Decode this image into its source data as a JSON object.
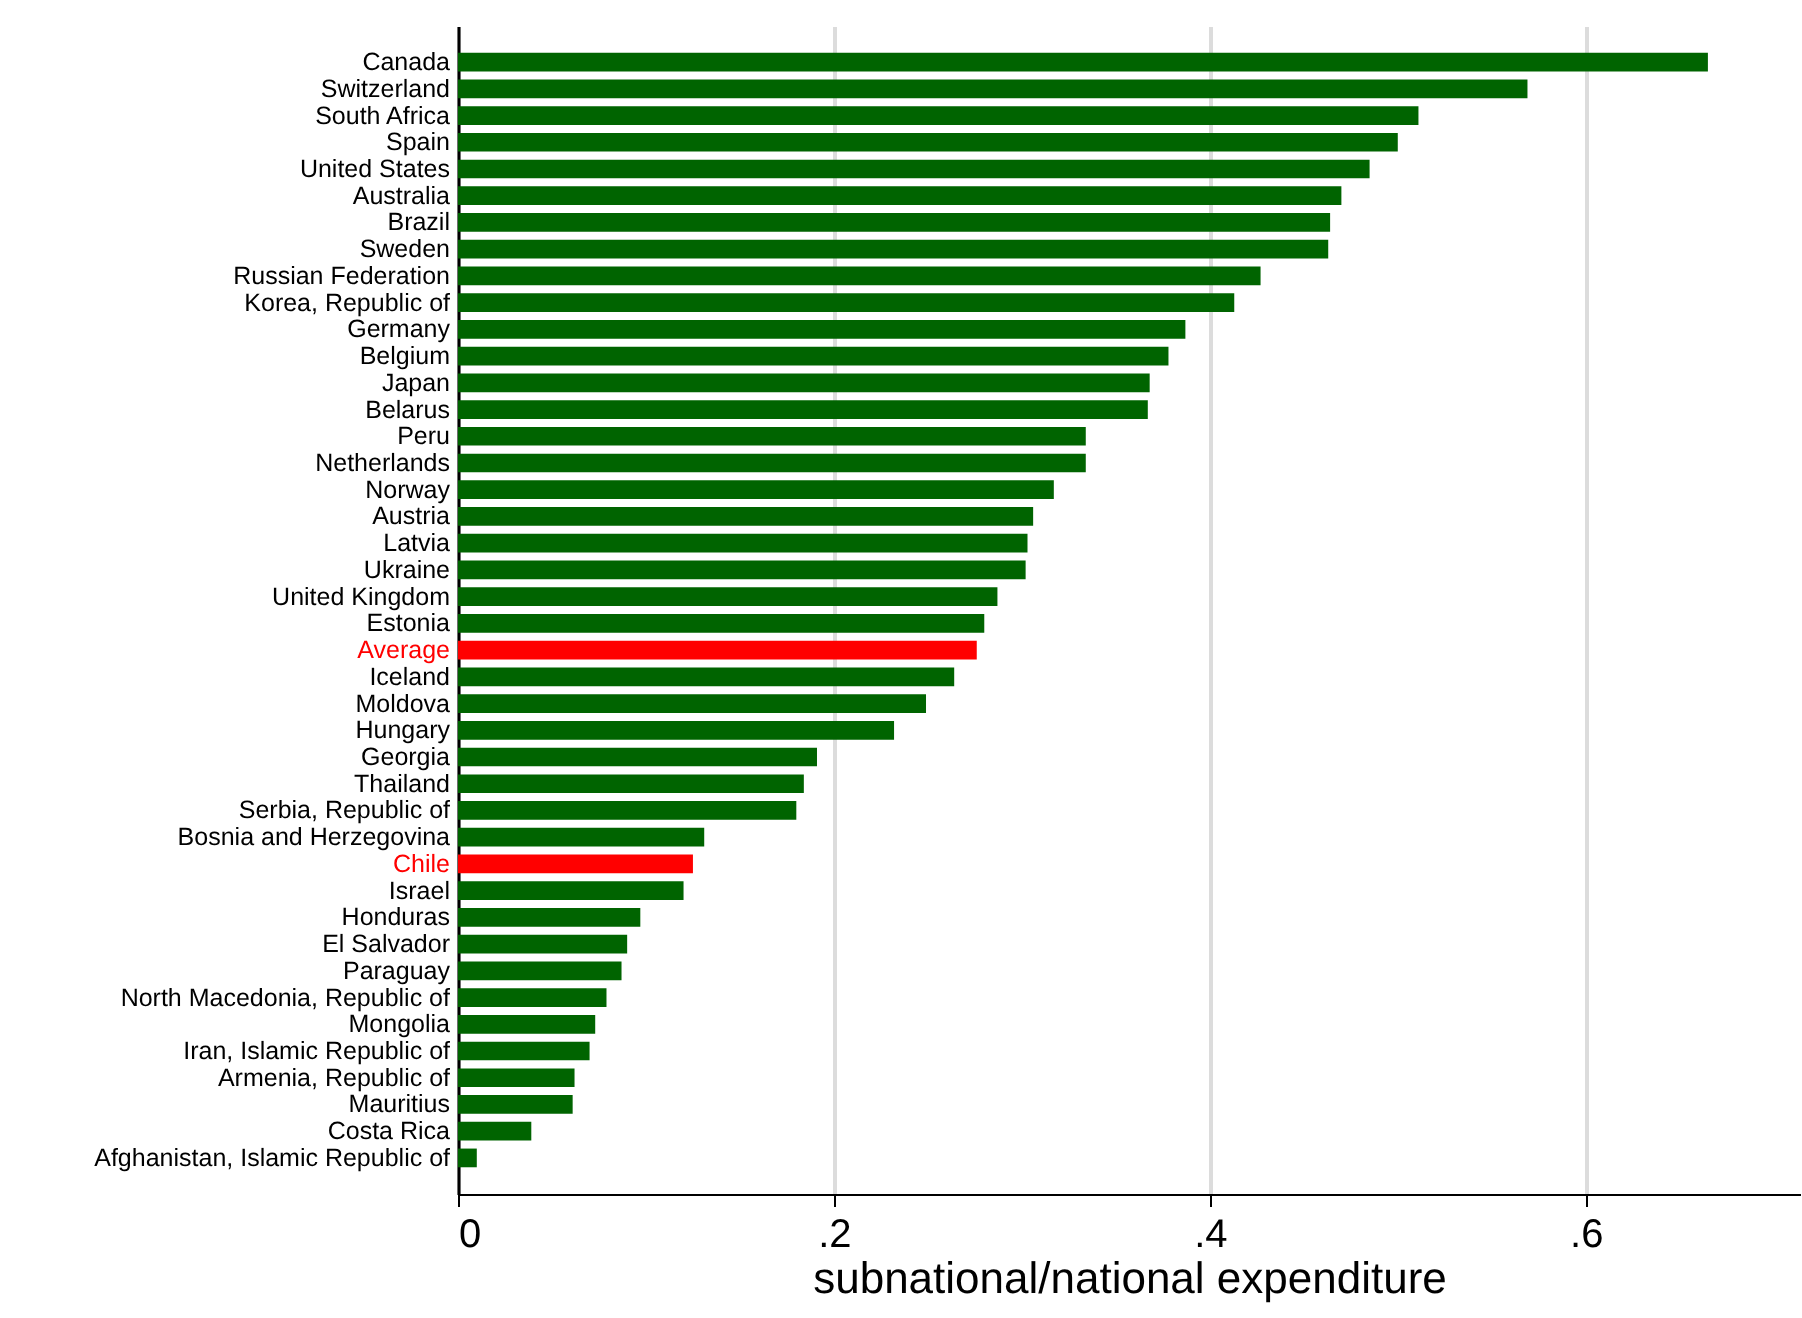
{
  "chart_data": {
    "type": "bar",
    "orientation": "horizontal",
    "xlabel": "subnational/national expenditure",
    "categories": [
      "Canada",
      "Switzerland",
      "South Africa",
      "Spain",
      "United States",
      "Australia",
      "Brazil",
      "Sweden",
      "Russian Federation",
      "Korea, Republic of",
      "Germany",
      "Belgium",
      "Japan",
      "Belarus",
      "Peru",
      "Netherlands",
      "Norway",
      "Austria",
      "Latvia",
      "Ukraine",
      "United Kingdom",
      "Estonia",
      "Average",
      "Iceland",
      "Moldova",
      "Hungary",
      "Georgia",
      "Thailand",
      "Serbia, Republic of",
      "Bosnia and Herzegovina",
      "Chile",
      "Israel",
      "Honduras",
      "El Salvador",
      "Paraguay",
      "North Macedonia, Republic of",
      "Mongolia",
      "Iran, Islamic Republic of",
      "Armenia, Republic of",
      "Mauritius",
      "Costa Rica",
      "Afghanistan, Islamic Republic of"
    ],
    "values": [
      0.665,
      0.569,
      0.511,
      0.5,
      0.485,
      0.47,
      0.464,
      0.463,
      0.427,
      0.413,
      0.387,
      0.378,
      0.368,
      0.367,
      0.334,
      0.334,
      0.317,
      0.306,
      0.303,
      0.302,
      0.287,
      0.28,
      0.276,
      0.264,
      0.249,
      0.232,
      0.191,
      0.184,
      0.18,
      0.131,
      0.125,
      0.12,
      0.097,
      0.09,
      0.087,
      0.079,
      0.073,
      0.07,
      0.062,
      0.061,
      0.039,
      0.01
    ],
    "colors": [
      "#006400",
      "#006400",
      "#006400",
      "#006400",
      "#006400",
      "#006400",
      "#006400",
      "#006400",
      "#006400",
      "#006400",
      "#006400",
      "#006400",
      "#006400",
      "#006400",
      "#006400",
      "#006400",
      "#006400",
      "#006400",
      "#006400",
      "#006400",
      "#006400",
      "#006400",
      "#ff0000",
      "#006400",
      "#006400",
      "#006400",
      "#006400",
      "#006400",
      "#006400",
      "#006400",
      "#ff0000",
      "#006400",
      "#006400",
      "#006400",
      "#006400",
      "#006400",
      "#006400",
      "#006400",
      "#006400",
      "#006400",
      "#006400",
      "#006400"
    ],
    "xlim": [
      0,
      0.714
    ],
    "xticks": [
      {
        "value": 0,
        "label": "0"
      },
      {
        "value": 0.2,
        "label": ".2"
      },
      {
        "value": 0.4,
        "label": ".4"
      },
      {
        "value": 0.6,
        "label": ".6"
      }
    ],
    "grid": "x"
  }
}
